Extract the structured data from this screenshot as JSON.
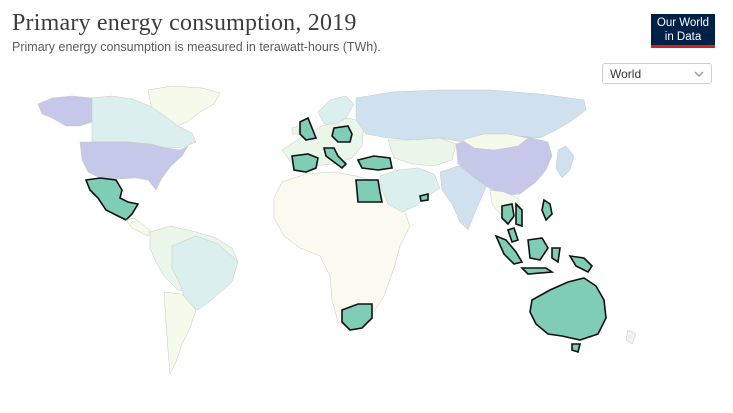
{
  "header": {
    "title": "Primary energy consumption, 2019",
    "subtitle": "Primary energy consumption is measured in terawatt-hours (TWh)."
  },
  "logo": {
    "line1": "Our World",
    "line2": "in Data"
  },
  "region_select": {
    "selected": "World"
  },
  "colors": {
    "ocean": "#ffffff",
    "land_base": "#fafaf0",
    "highlight": "#7fcdb4",
    "very_high": "#c5c8e8",
    "high": "#cfe1ef",
    "medium": "#dbf0ee",
    "low": "#eaf6ea",
    "very_low": "#f5faeb",
    "no_data": "#f1f1f1"
  },
  "map": {
    "highlighted_countries": [
      "Mexico",
      "United Kingdom",
      "Poland",
      "Spain",
      "Italy",
      "Turkey",
      "Egypt",
      "United Arab Emirates",
      "South Africa",
      "Thailand",
      "Vietnam",
      "Malaysia",
      "Indonesia",
      "Philippines",
      "Papua New Guinea",
      "Australia"
    ]
  }
}
